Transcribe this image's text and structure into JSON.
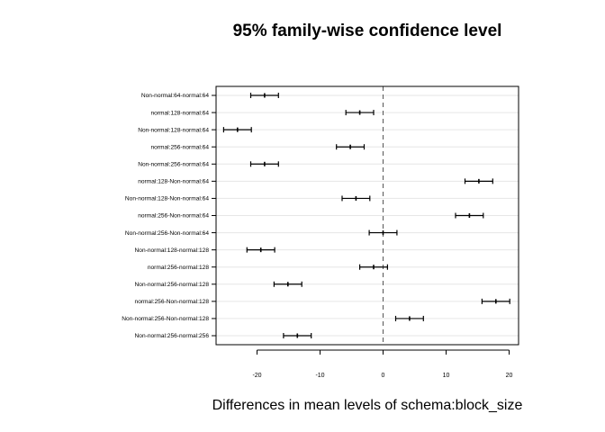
{
  "chart_data": {
    "type": "interval",
    "title": "95% family-wise confidence level",
    "xlabel": "Differences in mean levels of schema:block_size",
    "ylabel": "",
    "xlim": [
      -26.5,
      21.5
    ],
    "x_ticks": [
      -20,
      -10,
      0,
      10,
      20
    ],
    "reference_line": 0,
    "grid": "horizontal",
    "comparisons": [
      {
        "label": "Non-normal:64-normal:64",
        "lwr": -21.0,
        "diff": -18.8,
        "upr": -16.6
      },
      {
        "label": "normal:128-normal:64",
        "lwr": -5.9,
        "diff": -3.7,
        "upr": -1.5
      },
      {
        "label": "Non-normal:128-normal:64",
        "lwr": -25.3,
        "diff": -23.1,
        "upr": -20.9
      },
      {
        "label": "normal:256-normal:64",
        "lwr": -7.4,
        "diff": -5.2,
        "upr": -3.0
      },
      {
        "label": "Non-normal:256-normal:64",
        "lwr": -21.0,
        "diff": -18.8,
        "upr": -16.6
      },
      {
        "label": "normal:128-Non-normal:64",
        "lwr": 13.0,
        "diff": 15.2,
        "upr": 17.4
      },
      {
        "label": "Non-normal:128-Non-normal:64",
        "lwr": -6.5,
        "diff": -4.3,
        "upr": -2.1
      },
      {
        "label": "normal:256-Non-normal:64",
        "lwr": 11.5,
        "diff": 13.7,
        "upr": 15.9
      },
      {
        "label": "Non-normal:256-Non-normal:64",
        "lwr": -2.2,
        "diff": 0.0,
        "upr": 2.2
      },
      {
        "label": "Non-normal:128-normal:128",
        "lwr": -21.6,
        "diff": -19.4,
        "upr": -17.2
      },
      {
        "label": "normal:256-normal:128",
        "lwr": -3.7,
        "diff": -1.5,
        "upr": 0.7
      },
      {
        "label": "Non-normal:256-normal:128",
        "lwr": -17.3,
        "diff": -15.1,
        "upr": -12.9
      },
      {
        "label": "normal:256-Non-normal:128",
        "lwr": 15.7,
        "diff": 17.9,
        "upr": 20.1
      },
      {
        "label": "Non-normal:256-Non-normal:128",
        "lwr": 2.0,
        "diff": 4.2,
        "upr": 6.4
      },
      {
        "label": "Non-normal:256-normal:256",
        "lwr": -15.8,
        "diff": -13.6,
        "upr": -11.4
      }
    ]
  }
}
